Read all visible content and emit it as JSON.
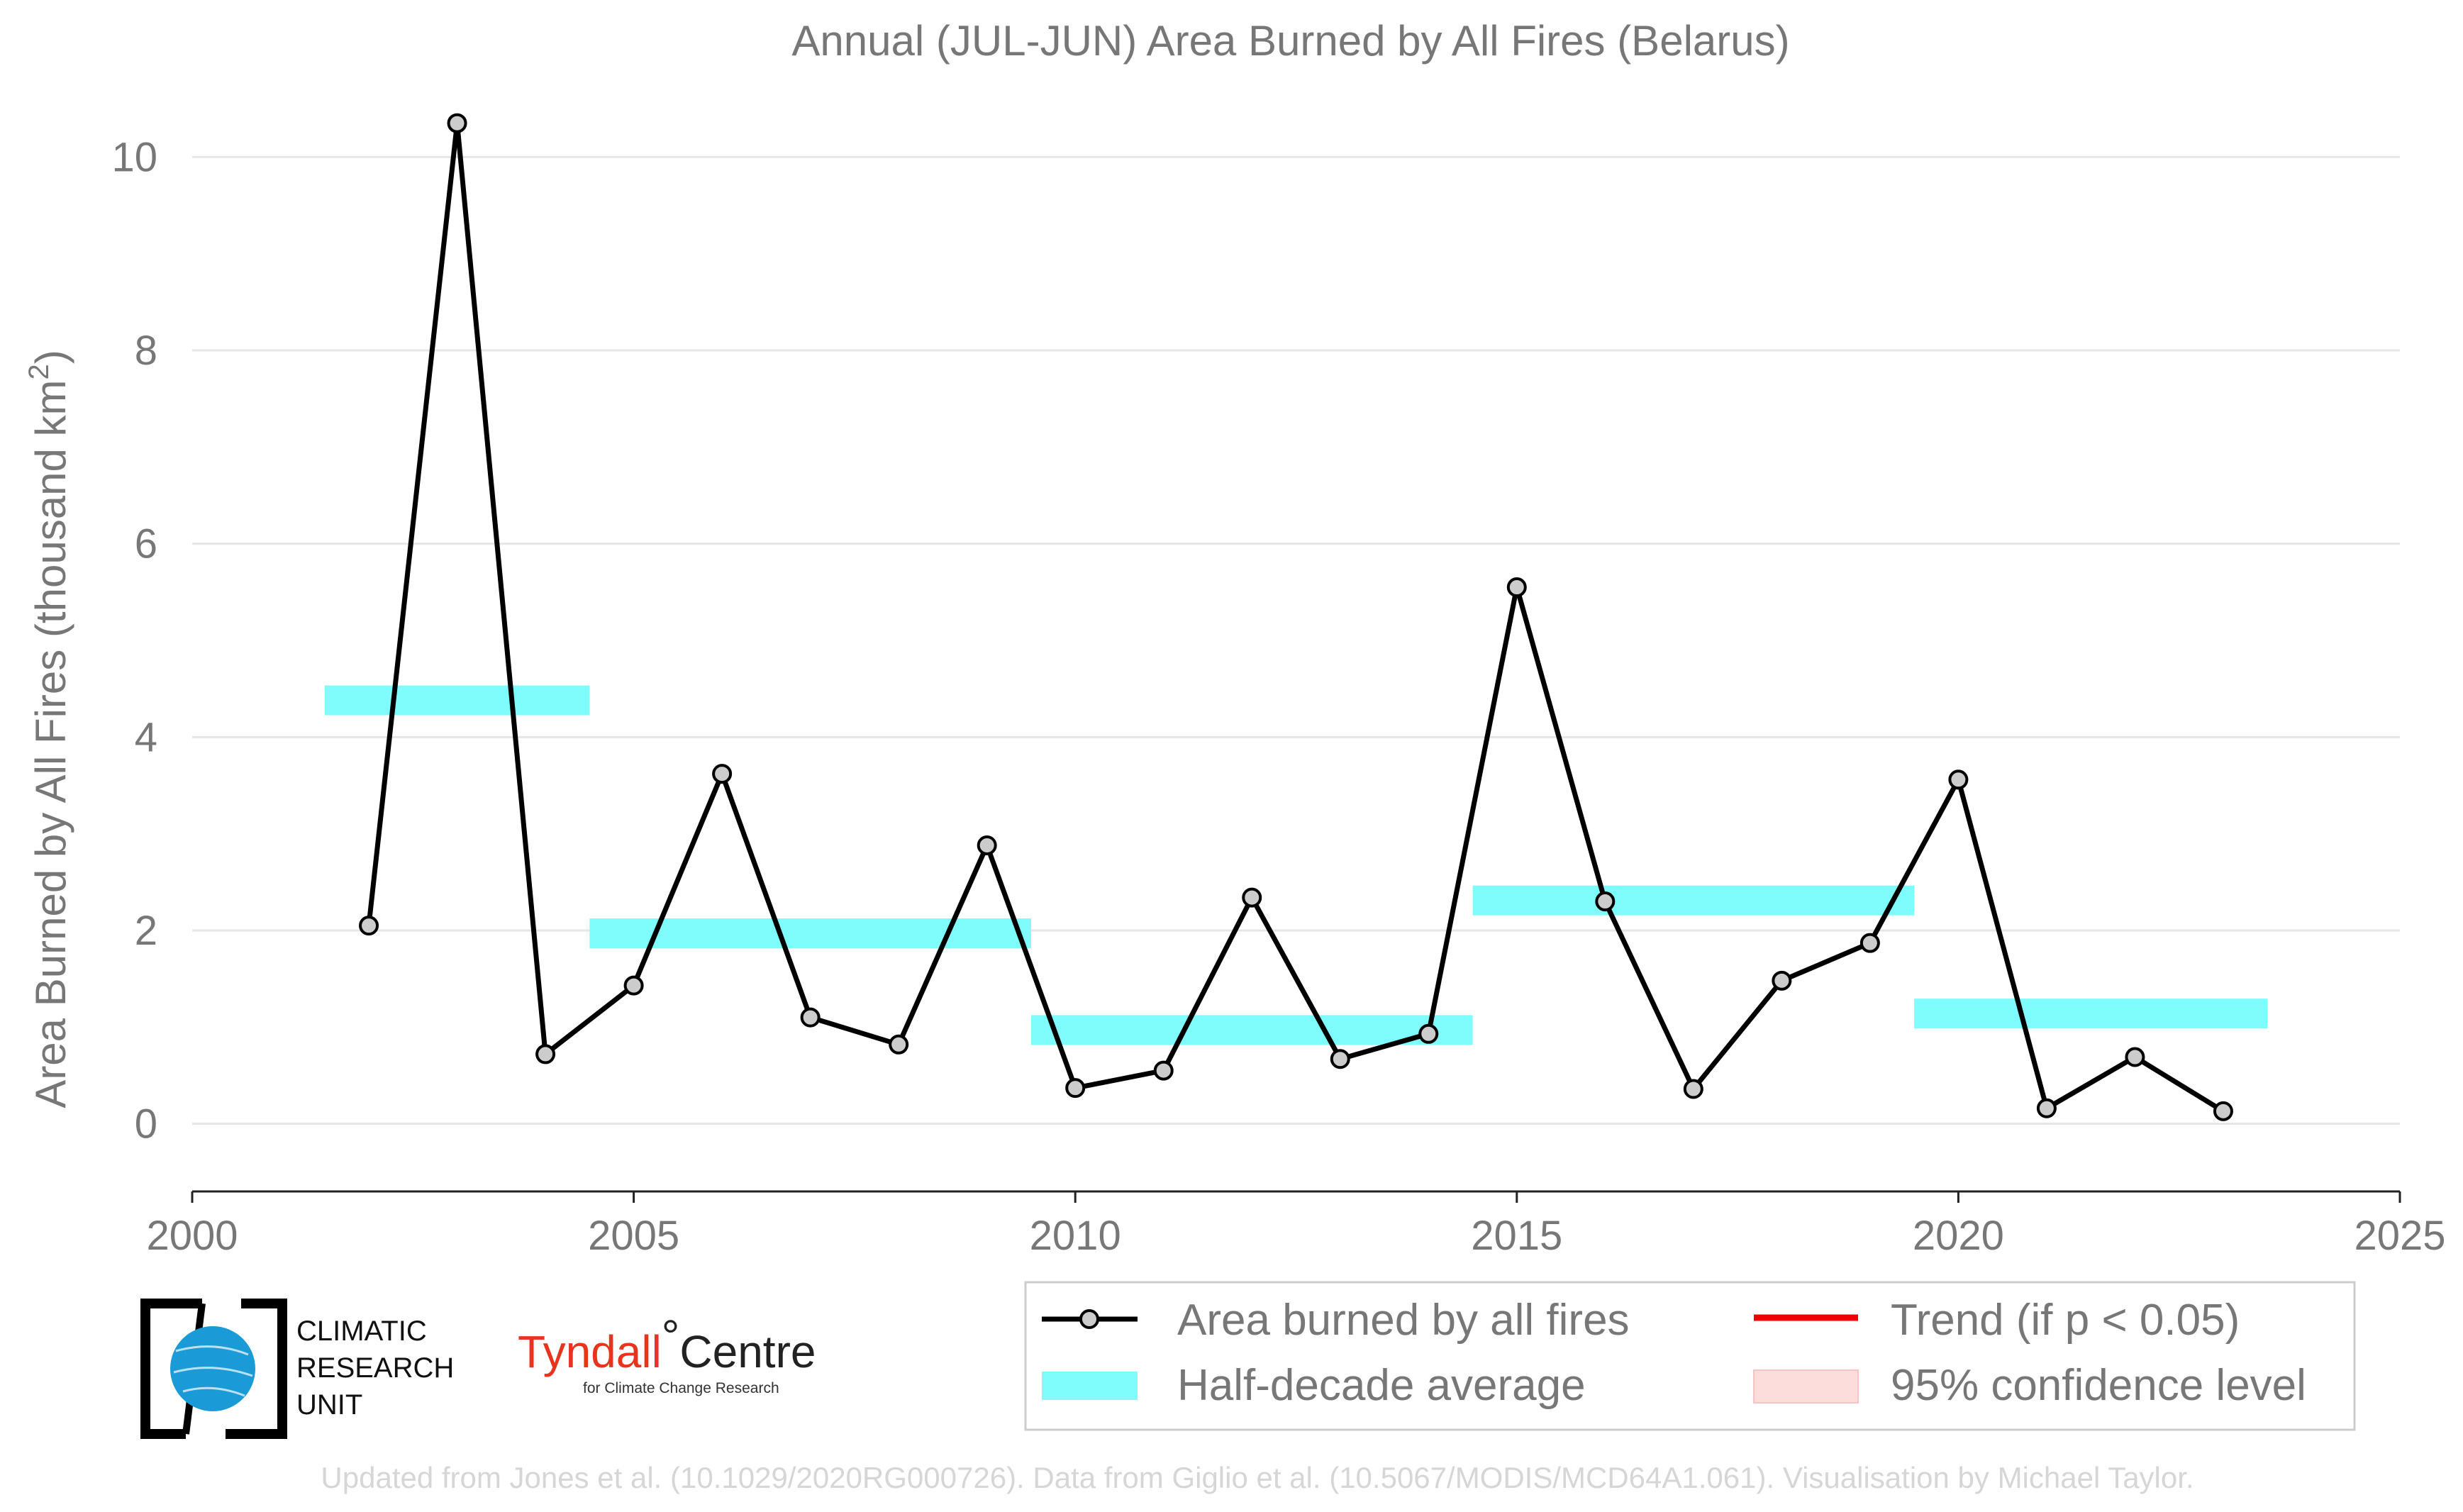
{
  "chart_data": {
    "type": "line",
    "title": "Annual (JUL-JUN) Area Burned by All Fires (Belarus)",
    "xlabel": "",
    "ylabel": "Area Burned by All Fires (thousand km",
    "ylabel_superscript": "2",
    "ylabel_close": ")",
    "xlim": [
      2000,
      2025
    ],
    "ylim": [
      -0.7,
      10.7
    ],
    "x_ticks": [
      2000,
      2005,
      2010,
      2015,
      2020,
      2025
    ],
    "y_ticks": [
      0,
      2,
      4,
      6,
      8,
      10
    ],
    "grid": "horizontal",
    "legend_position": "bottom-right",
    "series": [
      {
        "name": "Area burned by all fires",
        "color": "#000000",
        "marker_fill": "#cccccc",
        "x": [
          2002,
          2003,
          2004,
          2005,
          2006,
          2007,
          2008,
          2009,
          2010,
          2011,
          2012,
          2013,
          2014,
          2015,
          2016,
          2017,
          2018,
          2019,
          2020,
          2021,
          2022,
          2023
        ],
        "y": [
          2.05,
          10.35,
          0.72,
          1.43,
          3.62,
          1.1,
          0.82,
          2.88,
          0.37,
          0.55,
          2.34,
          0.67,
          0.93,
          5.55,
          2.3,
          0.36,
          1.48,
          1.87,
          3.56,
          0.16,
          0.69,
          0.13
        ]
      }
    ],
    "half_decade_averages": {
      "name": "Half-decade average",
      "color": "#7ffcfc",
      "segments": [
        {
          "x_start": 2001.5,
          "x_end": 2004.5,
          "value": 4.38
        },
        {
          "x_start": 2004.5,
          "x_end": 2009.5,
          "value": 1.97
        },
        {
          "x_start": 2009.5,
          "x_end": 2014.5,
          "value": 0.97
        },
        {
          "x_start": 2014.5,
          "x_end": 2019.5,
          "value": 2.31
        },
        {
          "x_start": 2019.5,
          "x_end": 2023.5,
          "value": 1.14
        }
      ]
    },
    "legend": [
      {
        "label": "Area burned by all fires",
        "kind": "line-marker",
        "color": "#000000"
      },
      {
        "label": "Trend (if p < 0.05)",
        "kind": "line",
        "color": "#ee0000"
      },
      {
        "label": "Half-decade average",
        "kind": "band",
        "color": "#7ffcfc"
      },
      {
        "label": "95% confidence level",
        "kind": "band",
        "color": "#fddcdc"
      }
    ]
  },
  "logos": {
    "cru_line1": "CLIMATIC",
    "cru_line2": "RESEARCH",
    "cru_line3": "UNIT",
    "tyndall_name": "Tyndall",
    "tyndall_degree": "°",
    "tyndall_centre": "Centre",
    "tyndall_sub": "for Climate Change Research"
  },
  "credit": "Updated from Jones et al. (10.1029/2020RG000726). Data from Giglio et al. (10.5067/MODIS/MCD64A1.061). Visualisation by Michael Taylor."
}
